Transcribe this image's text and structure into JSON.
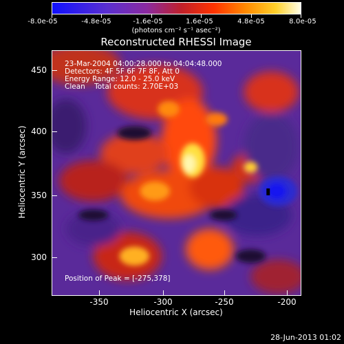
{
  "colorbar": {
    "tick_labels": [
      "-8.0e-05",
      "-4.8e-05",
      "-1.6e-05",
      "1.6e-05",
      "4.8e-05",
      "8.0e-05"
    ],
    "units": "(photons cm⁻² s⁻¹ asec⁻²)",
    "range": [
      -8e-05,
      8e-05
    ]
  },
  "title": "Reconstructed RHESSI Image",
  "info": {
    "time": "23-Mar-2004 04:00:28.000 to 04:04:48.000",
    "detectors": "Detectors: 4F 5F 6F 7F 8F, Att 0",
    "energy": "Energy Range: 12.0 - 25.0 keV",
    "method": "Clean    Total counts: 2.70E+03"
  },
  "peak": "Position of Peak = [-275,378]",
  "axes": {
    "xlabel": "Heliocentric X (arcsec)",
    "ylabel": "Heliocentric Y (arcsec)",
    "xticks": [
      "-350",
      "-300",
      "-250",
      "-200"
    ],
    "yticks": [
      "450",
      "400",
      "350",
      "300"
    ],
    "xlim": [
      -388,
      -192
    ],
    "ylim": [
      270,
      468
    ]
  },
  "timestamp": "28-Jun-2013 01:02"
}
